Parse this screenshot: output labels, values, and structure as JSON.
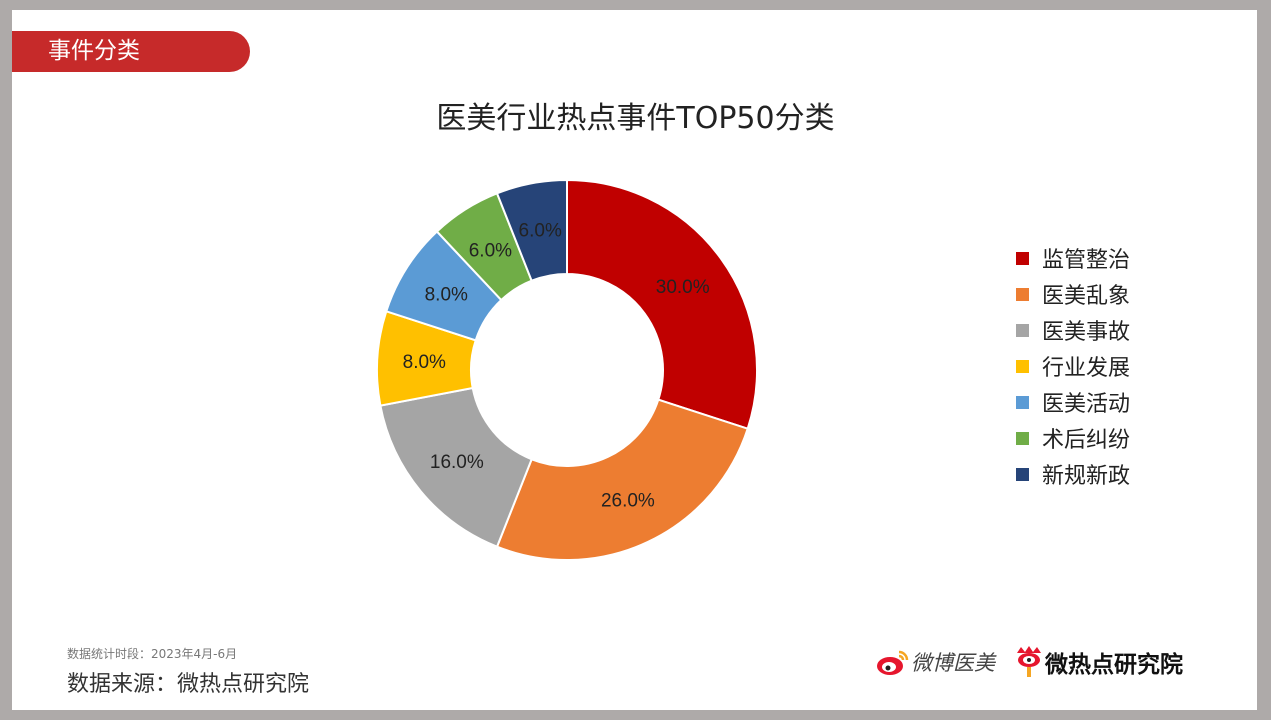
{
  "header": {
    "tag_label": "事件分类"
  },
  "chart_data": {
    "type": "pie",
    "variant": "donut",
    "title": "医美行业热点事件TOP50分类",
    "categories": [
      "监管整治",
      "医美乱象",
      "医美事故",
      "行业发展",
      "医美活动",
      "术后纠纷",
      "新规新政"
    ],
    "values": [
      30.0,
      26.0,
      16.0,
      8.0,
      8.0,
      6.0,
      6.0
    ],
    "labels": [
      "30.0%",
      "26.0%",
      "16.0%",
      "8.0%",
      "8.0%",
      "6.0%",
      "6.0%"
    ],
    "colors": [
      "#c00000",
      "#ed7d31",
      "#a5a5a5",
      "#ffc000",
      "#5b9bd5",
      "#70ad47",
      "#264478"
    ],
    "legend_position": "right",
    "start_angle": "12 o'clock, clockwise"
  },
  "legend": [
    {
      "label": "监管整治",
      "color": "#c00000"
    },
    {
      "label": "医美乱象",
      "color": "#ed7d31"
    },
    {
      "label": "医美事故",
      "color": "#a5a5a5"
    },
    {
      "label": "行业发展",
      "color": "#ffc000"
    },
    {
      "label": "医美活动",
      "color": "#5b9bd5"
    },
    {
      "label": "术后纠纷",
      "color": "#70ad47"
    },
    {
      "label": "新规新政",
      "color": "#264478"
    }
  ],
  "footer": {
    "period": "数据统计时段：2023年4月-6月",
    "source": "数据来源：微热点研究院",
    "logo1": "微博医美",
    "logo2": "微热点研究院"
  }
}
